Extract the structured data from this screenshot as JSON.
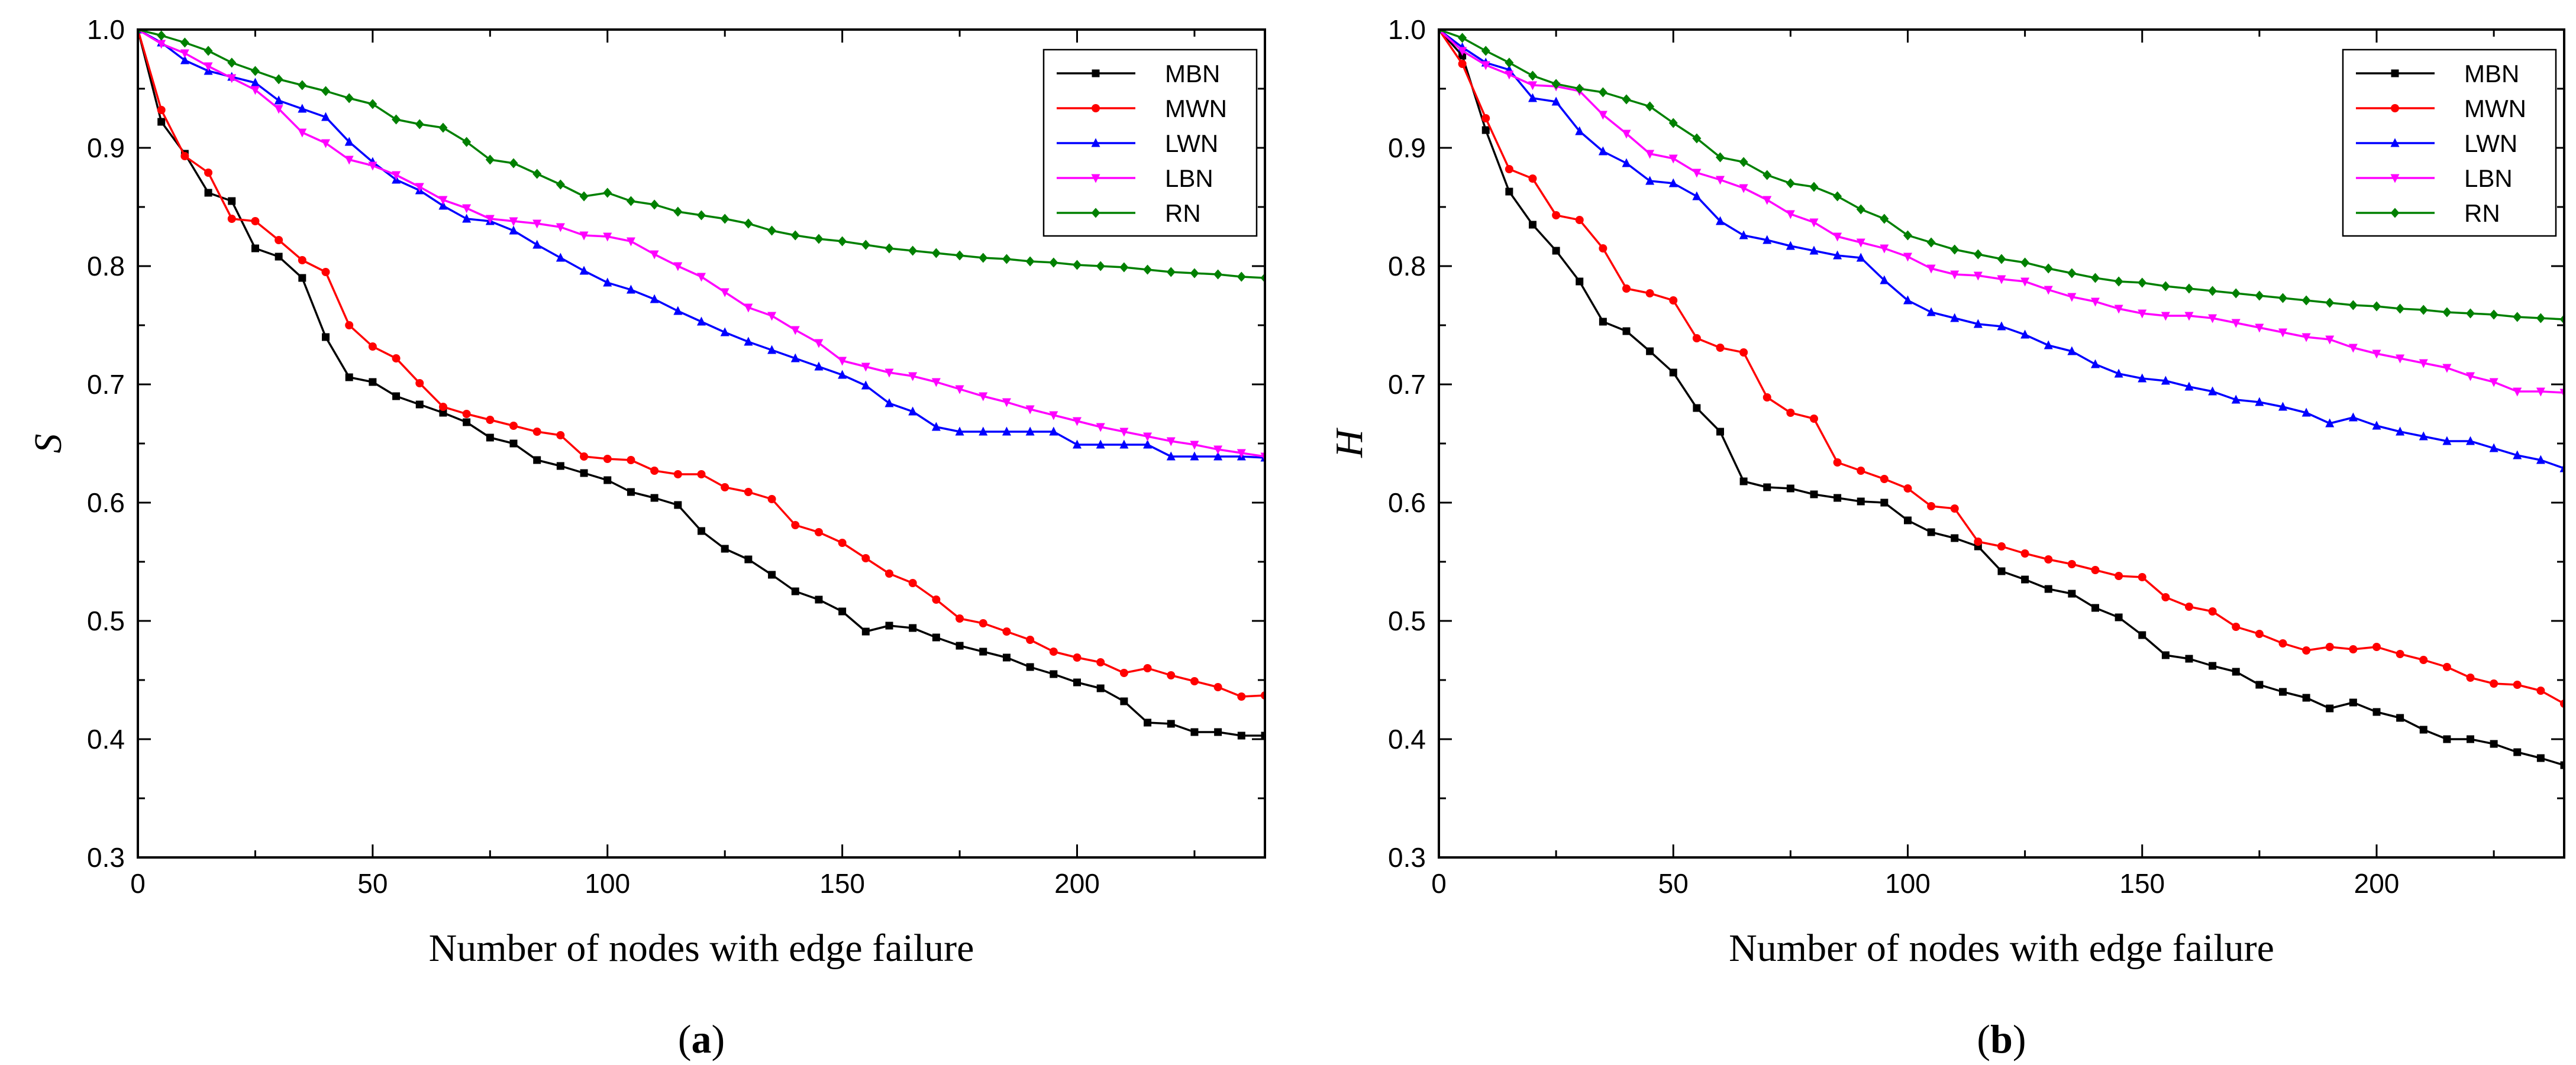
{
  "chart_data": [
    {
      "type": "line",
      "panel_label": "a",
      "xlabel": "Number of nodes with edge failure",
      "ylabel": "S",
      "xlim": [
        0,
        240
      ],
      "ylim": [
        0.3,
        1.0
      ],
      "xticks": [
        "0",
        "50",
        "100",
        "150",
        "200"
      ],
      "yticks": [
        "0.3",
        "0.4",
        "0.5",
        "0.6",
        "0.7",
        "0.8",
        "0.9",
        "1.0"
      ],
      "legend_position": "top-right",
      "x": [
        0,
        5,
        10,
        15,
        20,
        25,
        30,
        35,
        40,
        45,
        50,
        55,
        60,
        65,
        70,
        75,
        80,
        85,
        90,
        95,
        100,
        105,
        110,
        115,
        120,
        125,
        130,
        135,
        140,
        145,
        150,
        155,
        160,
        165,
        170,
        175,
        180,
        185,
        190,
        195,
        200,
        205,
        210,
        215,
        220,
        225,
        230,
        235,
        240
      ],
      "series": [
        {
          "name": "MBN",
          "color": "#000000",
          "marker": "square",
          "values": [
            1.0,
            0.922,
            0.895,
            0.862,
            0.855,
            0.815,
            0.808,
            0.79,
            0.74,
            0.706,
            0.702,
            0.69,
            0.683,
            0.676,
            0.668,
            0.655,
            0.65,
            0.636,
            0.631,
            0.625,
            0.619,
            0.609,
            0.604,
            0.598,
            0.576,
            0.561,
            0.552,
            0.539,
            0.525,
            0.518,
            0.508,
            0.491,
            0.496,
            0.494,
            0.486,
            0.479,
            0.474,
            0.469,
            0.461,
            0.455,
            0.448,
            0.443,
            0.432,
            0.414,
            0.413,
            0.406,
            0.406,
            0.403,
            0.403
          ]
        },
        {
          "name": "MWN",
          "color": "#ff0000",
          "marker": "circle",
          "values": [
            1.0,
            0.932,
            0.893,
            0.879,
            0.84,
            0.838,
            0.822,
            0.805,
            0.795,
            0.75,
            0.732,
            0.722,
            0.701,
            0.681,
            0.675,
            0.67,
            0.665,
            0.66,
            0.657,
            0.639,
            0.637,
            0.636,
            0.627,
            0.624,
            0.624,
            0.613,
            0.609,
            0.603,
            0.581,
            0.575,
            0.566,
            0.553,
            0.54,
            0.532,
            0.518,
            0.502,
            0.498,
            0.491,
            0.484,
            0.474,
            0.469,
            0.465,
            0.456,
            0.46,
            0.454,
            0.449,
            0.444,
            0.436,
            0.437
          ]
        },
        {
          "name": "LWN",
          "color": "#0000ff",
          "marker": "triangle",
          "values": [
            1.0,
            0.989,
            0.974,
            0.965,
            0.96,
            0.955,
            0.94,
            0.933,
            0.926,
            0.905,
            0.888,
            0.873,
            0.864,
            0.851,
            0.84,
            0.838,
            0.83,
            0.818,
            0.807,
            0.796,
            0.786,
            0.78,
            0.772,
            0.762,
            0.753,
            0.744,
            0.736,
            0.729,
            0.722,
            0.715,
            0.708,
            0.699,
            0.684,
            0.677,
            0.664,
            0.66,
            0.66,
            0.66,
            0.66,
            0.66,
            0.649,
            0.649,
            0.649,
            0.649,
            0.639,
            0.639,
            0.639,
            0.639,
            0.638
          ]
        },
        {
          "name": "LBN",
          "color": "#ff00ff",
          "marker": "triangle-down",
          "values": [
            1.0,
            0.988,
            0.98,
            0.969,
            0.959,
            0.949,
            0.933,
            0.913,
            0.904,
            0.89,
            0.885,
            0.877,
            0.867,
            0.856,
            0.849,
            0.84,
            0.838,
            0.836,
            0.833,
            0.826,
            0.825,
            0.821,
            0.81,
            0.8,
            0.791,
            0.778,
            0.765,
            0.758,
            0.746,
            0.735,
            0.72,
            0.715,
            0.71,
            0.707,
            0.702,
            0.696,
            0.69,
            0.685,
            0.679,
            0.674,
            0.669,
            0.664,
            0.66,
            0.656,
            0.652,
            0.649,
            0.645,
            0.642,
            0.639
          ]
        },
        {
          "name": "RN",
          "color": "#008000",
          "marker": "diamond",
          "values": [
            1.0,
            0.995,
            0.989,
            0.982,
            0.972,
            0.965,
            0.958,
            0.953,
            0.948,
            0.942,
            0.937,
            0.924,
            0.92,
            0.917,
            0.905,
            0.89,
            0.887,
            0.878,
            0.869,
            0.859,
            0.862,
            0.855,
            0.852,
            0.846,
            0.843,
            0.84,
            0.836,
            0.83,
            0.826,
            0.823,
            0.821,
            0.818,
            0.815,
            0.813,
            0.811,
            0.809,
            0.807,
            0.806,
            0.804,
            0.803,
            0.801,
            0.8,
            0.799,
            0.797,
            0.795,
            0.794,
            0.793,
            0.791,
            0.79
          ]
        }
      ]
    },
    {
      "type": "line",
      "panel_label": "b",
      "xlabel": "Number of nodes with edge failure",
      "ylabel": "H",
      "xlim": [
        0,
        240
      ],
      "ylim": [
        0.3,
        1.0
      ],
      "xticks": [
        "0",
        "50",
        "100",
        "150",
        "200"
      ],
      "yticks": [
        "0.3",
        "0.4",
        "0.5",
        "0.6",
        "0.7",
        "0.8",
        "0.9",
        "1.0"
      ],
      "legend_position": "top-right",
      "x": [
        0,
        5,
        10,
        15,
        20,
        25,
        30,
        35,
        40,
        45,
        50,
        55,
        60,
        65,
        70,
        75,
        80,
        85,
        90,
        95,
        100,
        105,
        110,
        115,
        120,
        125,
        130,
        135,
        140,
        145,
        150,
        155,
        160,
        165,
        170,
        175,
        180,
        185,
        190,
        195,
        200,
        205,
        210,
        215,
        220,
        225,
        230,
        235,
        240
      ],
      "series": [
        {
          "name": "MBN",
          "color": "#000000",
          "marker": "square",
          "values": [
            1.0,
            0.978,
            0.915,
            0.863,
            0.835,
            0.813,
            0.787,
            0.753,
            0.745,
            0.728,
            0.71,
            0.68,
            0.66,
            0.618,
            0.613,
            0.612,
            0.607,
            0.604,
            0.601,
            0.6,
            0.585,
            0.575,
            0.57,
            0.563,
            0.542,
            0.535,
            0.527,
            0.523,
            0.511,
            0.503,
            0.488,
            0.471,
            0.468,
            0.462,
            0.457,
            0.446,
            0.44,
            0.435,
            0.426,
            0.431,
            0.423,
            0.418,
            0.408,
            0.4,
            0.4,
            0.396,
            0.389,
            0.384,
            0.378
          ]
        },
        {
          "name": "MWN",
          "color": "#ff0000",
          "marker": "circle",
          "values": [
            1.0,
            0.971,
            0.925,
            0.882,
            0.874,
            0.843,
            0.839,
            0.815,
            0.781,
            0.777,
            0.771,
            0.739,
            0.731,
            0.727,
            0.689,
            0.676,
            0.671,
            0.634,
            0.627,
            0.62,
            0.612,
            0.597,
            0.595,
            0.567,
            0.563,
            0.557,
            0.552,
            0.548,
            0.543,
            0.538,
            0.537,
            0.52,
            0.512,
            0.508,
            0.495,
            0.489,
            0.481,
            0.475,
            0.478,
            0.476,
            0.478,
            0.472,
            0.467,
            0.461,
            0.452,
            0.447,
            0.446,
            0.441,
            0.43
          ]
        },
        {
          "name": "LWN",
          "color": "#0000ff",
          "marker": "triangle",
          "values": [
            1.0,
            0.985,
            0.972,
            0.966,
            0.942,
            0.939,
            0.914,
            0.897,
            0.887,
            0.872,
            0.87,
            0.859,
            0.838,
            0.826,
            0.822,
            0.817,
            0.813,
            0.809,
            0.807,
            0.788,
            0.771,
            0.761,
            0.756,
            0.751,
            0.749,
            0.742,
            0.733,
            0.728,
            0.717,
            0.709,
            0.705,
            0.703,
            0.698,
            0.694,
            0.687,
            0.685,
            0.681,
            0.676,
            0.667,
            0.672,
            0.665,
            0.66,
            0.656,
            0.652,
            0.652,
            0.646,
            0.64,
            0.636,
            0.629
          ]
        },
        {
          "name": "LBN",
          "color": "#ff00ff",
          "marker": "triangle-down",
          "values": [
            1.0,
            0.982,
            0.97,
            0.962,
            0.953,
            0.952,
            0.948,
            0.928,
            0.912,
            0.895,
            0.891,
            0.879,
            0.873,
            0.866,
            0.856,
            0.844,
            0.837,
            0.825,
            0.82,
            0.815,
            0.808,
            0.798,
            0.793,
            0.792,
            0.789,
            0.787,
            0.78,
            0.774,
            0.77,
            0.764,
            0.76,
            0.758,
            0.758,
            0.756,
            0.752,
            0.748,
            0.744,
            0.74,
            0.738,
            0.731,
            0.726,
            0.722,
            0.718,
            0.714,
            0.707,
            0.702,
            0.694,
            0.694,
            0.693
          ]
        },
        {
          "name": "RN",
          "color": "#008000",
          "marker": "diamond",
          "values": [
            1.0,
            0.993,
            0.982,
            0.972,
            0.961,
            0.954,
            0.95,
            0.947,
            0.941,
            0.935,
            0.921,
            0.908,
            0.892,
            0.888,
            0.877,
            0.87,
            0.867,
            0.859,
            0.848,
            0.84,
            0.826,
            0.82,
            0.814,
            0.81,
            0.806,
            0.803,
            0.798,
            0.794,
            0.79,
            0.787,
            0.786,
            0.783,
            0.781,
            0.779,
            0.777,
            0.775,
            0.773,
            0.771,
            0.769,
            0.767,
            0.766,
            0.764,
            0.763,
            0.761,
            0.76,
            0.759,
            0.757,
            0.756,
            0.755
          ]
        }
      ]
    }
  ]
}
